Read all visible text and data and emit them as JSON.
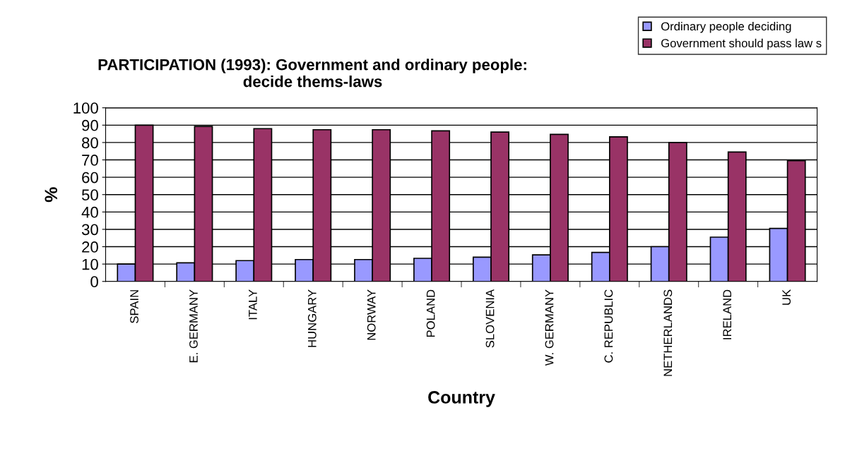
{
  "chart_data": {
    "type": "bar",
    "title": "PARTICIPATION (1993): Government and ordinary people:\ndecide thems-laws",
    "xlabel": "Country",
    "ylabel": "%",
    "categories": [
      "SPAIN",
      "E. GERMANY",
      "ITALY",
      "HUNGARY",
      "NORWAY",
      "POLAND",
      "SLOVENIA",
      "W. GERMANY",
      "C. REPUBLIC",
      "NETHERLANDS",
      "IRELAND",
      "UK"
    ],
    "series": [
      {
        "name": "Ordinary people deciding",
        "color": "#9999ff",
        "values": [
          10,
          10.7,
          12,
          12.6,
          12.6,
          13.3,
          14,
          15.3,
          16.7,
          20,
          25.5,
          30.5
        ]
      },
      {
        "name": "Government should pass law s",
        "color": "#993366",
        "values": [
          90,
          89.3,
          88,
          87.4,
          87.4,
          86.7,
          86,
          84.7,
          83.3,
          80,
          74.5,
          69.5
        ]
      }
    ],
    "ylim": [
      0,
      100
    ],
    "yticks": [
      0,
      10,
      20,
      30,
      40,
      50,
      60,
      70,
      80,
      90,
      100
    ],
    "grid": "y",
    "legend": "top right"
  }
}
